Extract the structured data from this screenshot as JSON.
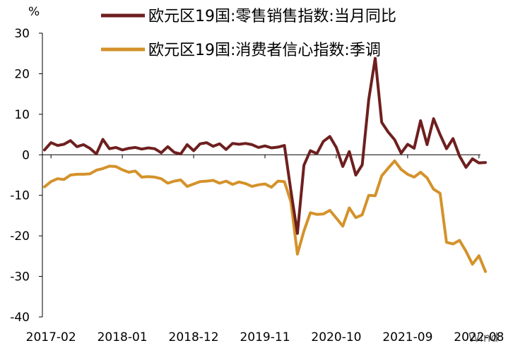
{
  "chart_data": {
    "type": "line",
    "unit_label": "%",
    "ylim": [
      -40,
      30
    ],
    "y_ticks": [
      30,
      20,
      10,
      0,
      -10,
      -20,
      -30,
      -40
    ],
    "x_ticks": [
      "2017-02",
      "2018-01",
      "2018-12",
      "2019-11",
      "2020-10",
      "2021-09",
      "2022-08"
    ],
    "watermark": "Wind",
    "grid": false,
    "legend_position": "top",
    "series": [
      {
        "name": "欧元区19国:零售销售指数:当月同比",
        "color": "#6e1f1f",
        "x": [
          "2017-01",
          "2017-02",
          "2017-03",
          "2017-04",
          "2017-05",
          "2017-06",
          "2017-07",
          "2017-08",
          "2017-09",
          "2017-10",
          "2017-11",
          "2017-12",
          "2018-01",
          "2018-02",
          "2018-03",
          "2018-04",
          "2018-05",
          "2018-06",
          "2018-07",
          "2018-08",
          "2018-09",
          "2018-10",
          "2018-11",
          "2018-12",
          "2019-01",
          "2019-02",
          "2019-03",
          "2019-04",
          "2019-05",
          "2019-06",
          "2019-07",
          "2019-08",
          "2019-09",
          "2019-10",
          "2019-11",
          "2019-12",
          "2020-01",
          "2020-02",
          "2020-03",
          "2020-04",
          "2020-05",
          "2020-06",
          "2020-07",
          "2020-08",
          "2020-09",
          "2020-10",
          "2020-11",
          "2020-12",
          "2021-01",
          "2021-02",
          "2021-03",
          "2021-04",
          "2021-05",
          "2021-06",
          "2021-07",
          "2021-08",
          "2021-09",
          "2021-10",
          "2021-11",
          "2021-12",
          "2022-01",
          "2022-02",
          "2022-03",
          "2022-04",
          "2022-05",
          "2022-06",
          "2022-07",
          "2022-08",
          "2022-09"
        ],
        "values": [
          1.2,
          3.0,
          2.3,
          2.6,
          3.5,
          2.0,
          2.5,
          1.6,
          0.2,
          3.8,
          1.5,
          1.8,
          1.2,
          1.6,
          1.8,
          1.4,
          1.7,
          1.5,
          0.5,
          2.0,
          0.6,
          0.2,
          2.5,
          1.0,
          2.7,
          3.0,
          2.1,
          2.7,
          1.3,
          2.8,
          2.6,
          2.8,
          2.5,
          1.8,
          2.2,
          1.7,
          1.9,
          2.3,
          -8.9,
          -19.4,
          -2.6,
          1.0,
          0.3,
          3.3,
          4.5,
          1.8,
          -2.9,
          0.8,
          -5.0,
          -2.5,
          13.6,
          23.8,
          8.0,
          5.6,
          3.7,
          0.4,
          2.6,
          1.6,
          8.4,
          2.5,
          8.9,
          5.0,
          1.5,
          4.0,
          -0.3,
          -3.1,
          -1.0,
          -2.0,
          -1.9
        ],
        "line_width": 4
      },
      {
        "name": "欧元区19国:消费者信心指数:季调",
        "color": "#d4922a",
        "x": [
          "2017-01",
          "2017-02",
          "2017-03",
          "2017-04",
          "2017-05",
          "2017-06",
          "2017-07",
          "2017-08",
          "2017-09",
          "2017-10",
          "2017-11",
          "2017-12",
          "2018-01",
          "2018-02",
          "2018-03",
          "2018-04",
          "2018-05",
          "2018-06",
          "2018-07",
          "2018-08",
          "2018-09",
          "2018-10",
          "2018-11",
          "2018-12",
          "2019-01",
          "2019-02",
          "2019-03",
          "2019-04",
          "2019-05",
          "2019-06",
          "2019-07",
          "2019-08",
          "2019-09",
          "2019-10",
          "2019-11",
          "2019-12",
          "2020-01",
          "2020-02",
          "2020-03",
          "2020-04",
          "2020-05",
          "2020-06",
          "2020-07",
          "2020-08",
          "2020-09",
          "2020-10",
          "2020-11",
          "2020-12",
          "2021-01",
          "2021-02",
          "2021-03",
          "2021-04",
          "2021-05",
          "2021-06",
          "2021-07",
          "2021-08",
          "2021-09",
          "2021-10",
          "2021-11",
          "2021-12",
          "2022-01",
          "2022-02",
          "2022-03",
          "2022-04",
          "2022-05",
          "2022-06",
          "2022-07",
          "2022-08",
          "2022-09"
        ],
        "values": [
          -7.9,
          -6.6,
          -5.9,
          -6.1,
          -5.0,
          -4.8,
          -4.8,
          -4.7,
          -3.8,
          -3.4,
          -2.8,
          -2.9,
          -3.7,
          -4.3,
          -4.0,
          -5.5,
          -5.4,
          -5.5,
          -5.9,
          -7.0,
          -6.5,
          -6.2,
          -7.8,
          -7.2,
          -6.6,
          -6.5,
          -6.3,
          -7.0,
          -6.5,
          -7.3,
          -6.7,
          -7.1,
          -7.8,
          -7.4,
          -7.2,
          -8.0,
          -6.5,
          -6.6,
          -11.6,
          -24.5,
          -18.8,
          -14.3,
          -14.7,
          -14.6,
          -13.7,
          -15.6,
          -17.6,
          -13.1,
          -15.5,
          -14.8,
          -10.0,
          -10.1,
          -5.2,
          -3.3,
          -1.5,
          -3.6,
          -4.8,
          -5.5,
          -4.3,
          -5.7,
          -8.5,
          -9.5,
          -21.6,
          -22.0,
          -21.1,
          -23.8,
          -27.0,
          -24.9,
          -28.8
        ],
        "line_width": 4
      }
    ]
  }
}
